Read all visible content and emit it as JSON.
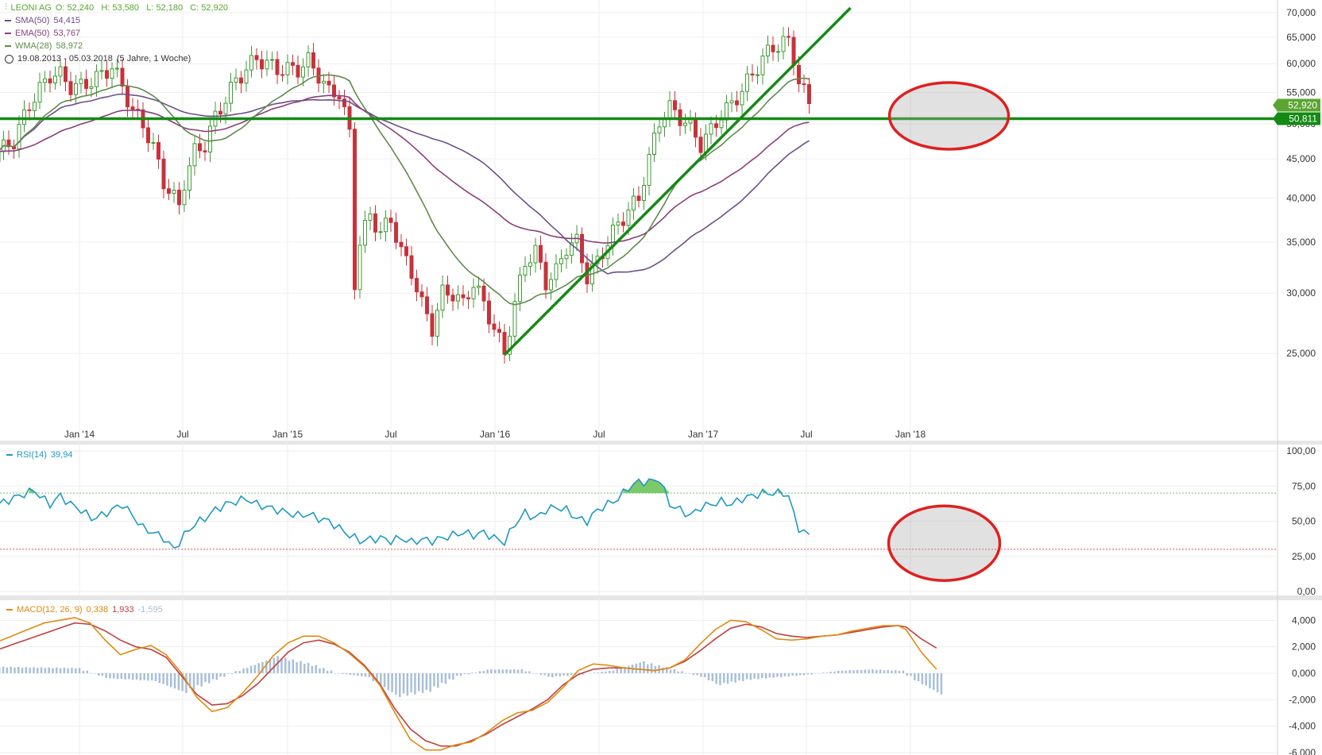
{
  "header": {
    "symbol": "LEONI AG",
    "ohlc": "O: 52,240   H: 53,580   L: 52,180   C: 52,920",
    "range": "19.08.2013 - 05.03.2018",
    "interval": "(5 Jahre, 1 Woche)"
  },
  "indicators": [
    {
      "name": "SMA(50)",
      "value": "54,415",
      "color": "#6c4f8a"
    },
    {
      "name": "EMA(50)",
      "value": "53,767",
      "color": "#8a3f7a"
    },
    {
      "name": "WMA(28)",
      "value": "58,972",
      "color": "#5f8a4a"
    }
  ],
  "price_labels": {
    "last": "52,920",
    "hline": "50,811",
    "last_color": "#5aa532",
    "hline_color": "#138a13"
  },
  "rsi_label": {
    "name": "RSI(14)",
    "value": "39,94",
    "color": "#1e9ac0"
  },
  "macd_label": {
    "name": "MACD(12, 26, 9)",
    "macd": "0,338",
    "signal": "1,933",
    "hist": "-1,595",
    "macd_color": "#e08a10",
    "signal_color": "#c04040",
    "hist_color": "#a9bfd8"
  },
  "chart_data": [
    {
      "type": "candlestick",
      "title": "LEONI AG",
      "scale": "log",
      "x_dates": [
        "Jan '14",
        "Jul",
        "Jan '15",
        "Jul",
        "Jan '16",
        "Jul",
        "Jan '17",
        "Jul",
        "Jan '18"
      ],
      "y_ticks": [
        "25,000",
        "30,000",
        "35,000",
        "40,000",
        "45,000",
        "50,000",
        "55,000",
        "60,000",
        "65,000",
        "70,000"
      ],
      "y_tick_values": [
        25000,
        30000,
        35000,
        40000,
        45000,
        50000,
        55000,
        60000,
        65000,
        70000
      ],
      "ylim": [
        20500,
        71000
      ],
      "close_path": [
        [
          0,
          46
        ],
        [
          3,
          47.5
        ],
        [
          6,
          53
        ],
        [
          8,
          55.5
        ],
        [
          10,
          58
        ],
        [
          12,
          58
        ],
        [
          14,
          56
        ],
        [
          16,
          56
        ],
        [
          18,
          57
        ],
        [
          20,
          58
        ],
        [
          22,
          59.5
        ],
        [
          24,
          56
        ],
        [
          26,
          52
        ],
        [
          28,
          50
        ],
        [
          30,
          46.5
        ],
        [
          32,
          42
        ],
        [
          34,
          40
        ],
        [
          35,
          39
        ],
        [
          36,
          42
        ],
        [
          38,
          46
        ],
        [
          40,
          47
        ],
        [
          42,
          51
        ],
        [
          44,
          54
        ],
        [
          46,
          57
        ],
        [
          48,
          59
        ],
        [
          50,
          61
        ],
        [
          52,
          60
        ],
        [
          54,
          59
        ],
        [
          56,
          59
        ],
        [
          58,
          59
        ],
        [
          60,
          60.5
        ],
        [
          62,
          58
        ],
        [
          64,
          55
        ],
        [
          66,
          55
        ],
        [
          68,
          48.5
        ],
        [
          69,
          31
        ],
        [
          70,
          35
        ],
        [
          72,
          38
        ],
        [
          74,
          36
        ],
        [
          76,
          37.5
        ],
        [
          78,
          34
        ],
        [
          80,
          32
        ],
        [
          82,
          29
        ],
        [
          84,
          27
        ],
        [
          86,
          30
        ],
        [
          88,
          30
        ],
        [
          90,
          29
        ],
        [
          92,
          31
        ],
        [
          94,
          29
        ],
        [
          96,
          27
        ],
        [
          98,
          25
        ],
        [
          100,
          29
        ],
        [
          102,
          33
        ],
        [
          104,
          34
        ],
        [
          106,
          31
        ],
        [
          108,
          32
        ],
        [
          110,
          34.5
        ],
        [
          112,
          35
        ],
        [
          114,
          31.5
        ],
        [
          116,
          33
        ],
        [
          118,
          35
        ],
        [
          120,
          37
        ],
        [
          122,
          38.5
        ],
        [
          124,
          40
        ],
        [
          126,
          45
        ],
        [
          128,
          50.5
        ],
        [
          130,
          52.5
        ],
        [
          132,
          51
        ],
        [
          134,
          49.5
        ],
        [
          136,
          47
        ],
        [
          138,
          49
        ],
        [
          140,
          51.5
        ],
        [
          142,
          53
        ],
        [
          144,
          55.5
        ],
        [
          146,
          58
        ],
        [
          148,
          61
        ],
        [
          150,
          63
        ],
        [
          152,
          64
        ],
        [
          153,
          64
        ],
        [
          154,
          61
        ],
        [
          155,
          57
        ],
        [
          156,
          55
        ],
        [
          157,
          53
        ]
      ],
      "overlays": [
        {
          "name": "SMA(50)",
          "value": 54415,
          "color": "#6c4f8a"
        },
        {
          "name": "EMA(50)",
          "value": 53767,
          "color": "#8a3f7a"
        },
        {
          "name": "WMA(28)",
          "value": 58972,
          "color": "#5f8a4a"
        }
      ],
      "last_close": 52920,
      "horizontal_line": 50811,
      "trendline": {
        "from": [
          98,
          24900
        ],
        "to": [
          165,
          71000
        ],
        "color": "#138a13"
      },
      "ellipses": [
        {
          "center": [
            157,
            51000
          ]
        }
      ]
    },
    {
      "type": "line",
      "title": "RSI(14)",
      "y_ticks": [
        "0,00",
        "25,00",
        "50,00",
        "75,00",
        "100,00"
      ],
      "ylim": [
        0,
        100
      ],
      "levels": [
        30,
        70
      ],
      "last": 39.94,
      "values_path": [
        [
          0,
          62
        ],
        [
          4,
          68
        ],
        [
          7,
          72
        ],
        [
          8,
          68
        ],
        [
          10,
          62
        ],
        [
          12,
          68
        ],
        [
          14,
          62
        ],
        [
          16,
          58
        ],
        [
          18,
          52
        ],
        [
          20,
          54
        ],
        [
          22,
          58
        ],
        [
          24,
          62
        ],
        [
          26,
          54
        ],
        [
          28,
          45
        ],
        [
          30,
          42
        ],
        [
          32,
          38
        ],
        [
          34,
          30
        ],
        [
          36,
          40
        ],
        [
          38,
          48
        ],
        [
          40,
          52
        ],
        [
          42,
          58
        ],
        [
          44,
          62
        ],
        [
          46,
          64
        ],
        [
          48,
          66
        ],
        [
          50,
          62
        ],
        [
          52,
          60
        ],
        [
          54,
          58
        ],
        [
          56,
          56
        ],
        [
          58,
          54
        ],
        [
          60,
          55
        ],
        [
          62,
          52
        ],
        [
          64,
          50
        ],
        [
          66,
          45
        ],
        [
          68,
          40
        ],
        [
          70,
          36
        ],
        [
          72,
          37
        ],
        [
          74,
          38
        ],
        [
          76,
          36
        ],
        [
          78,
          38
        ],
        [
          80,
          35
        ],
        [
          82,
          37
        ],
        [
          84,
          36
        ],
        [
          86,
          38
        ],
        [
          88,
          40
        ],
        [
          90,
          42
        ],
        [
          92,
          40
        ],
        [
          94,
          42
        ],
        [
          96,
          38
        ],
        [
          98,
          35
        ],
        [
          100,
          48
        ],
        [
          102,
          56
        ],
        [
          104,
          52
        ],
        [
          106,
          58
        ],
        [
          108,
          60
        ],
        [
          110,
          58
        ],
        [
          112,
          52
        ],
        [
          114,
          50
        ],
        [
          116,
          58
        ],
        [
          118,
          62
        ],
        [
          120,
          66
        ],
        [
          122,
          74
        ],
        [
          124,
          78
        ],
        [
          126,
          78
        ],
        [
          128,
          80
        ],
        [
          130,
          62
        ],
        [
          132,
          58
        ],
        [
          134,
          54
        ],
        [
          136,
          60
        ],
        [
          138,
          62
        ],
        [
          140,
          64
        ],
        [
          142,
          62
        ],
        [
          144,
          66
        ],
        [
          146,
          68
        ],
        [
          148,
          70
        ],
        [
          150,
          70
        ],
        [
          152,
          70
        ],
        [
          153,
          68
        ],
        [
          154,
          55
        ],
        [
          155,
          45
        ],
        [
          156,
          42
        ],
        [
          157,
          40
        ]
      ],
      "ellipses": [
        {
          "center": [
            157,
            36
          ]
        }
      ]
    },
    {
      "type": "line+bar",
      "title": "MACD(12, 26, 9)",
      "y_ticks": [
        "-6,000",
        "-4,000",
        "-2,000",
        "0,000",
        "2,000",
        "4,000"
      ],
      "ylim": [
        -6000,
        4800
      ],
      "macd_path": [
        [
          0,
          2400
        ],
        [
          6,
          3800
        ],
        [
          10,
          4200
        ],
        [
          12,
          3800
        ],
        [
          14,
          2500
        ],
        [
          16,
          1400
        ],
        [
          18,
          1800
        ],
        [
          20,
          2100
        ],
        [
          22,
          1400
        ],
        [
          24,
          0
        ],
        [
          26,
          -1800
        ],
        [
          28,
          -2900
        ],
        [
          30,
          -2600
        ],
        [
          32,
          -1500
        ],
        [
          34,
          -200
        ],
        [
          36,
          1300
        ],
        [
          38,
          2300
        ],
        [
          40,
          2800
        ],
        [
          42,
          2800
        ],
        [
          44,
          2300
        ],
        [
          46,
          1500
        ],
        [
          48,
          500
        ],
        [
          50,
          -900
        ],
        [
          52,
          -3000
        ],
        [
          54,
          -5000
        ],
        [
          56,
          -5800
        ],
        [
          58,
          -5800
        ],
        [
          60,
          -5400
        ],
        [
          62,
          -5200
        ],
        [
          64,
          -4500
        ],
        [
          66,
          -3600
        ],
        [
          68,
          -3000
        ],
        [
          70,
          -2800
        ],
        [
          72,
          -2200
        ],
        [
          74,
          -1100
        ],
        [
          76,
          200
        ],
        [
          78,
          700
        ],
        [
          80,
          600
        ],
        [
          82,
          400
        ],
        [
          84,
          300
        ],
        [
          86,
          200
        ],
        [
          88,
          400
        ],
        [
          90,
          1000
        ],
        [
          92,
          2200
        ],
        [
          94,
          3300
        ],
        [
          96,
          4000
        ],
        [
          98,
          3900
        ],
        [
          100,
          3300
        ],
        [
          102,
          2600
        ],
        [
          104,
          2500
        ],
        [
          106,
          2600
        ],
        [
          108,
          2800
        ],
        [
          110,
          2900
        ],
        [
          112,
          3200
        ],
        [
          114,
          3400
        ],
        [
          116,
          3600
        ],
        [
          118,
          3600
        ],
        [
          119,
          3300
        ],
        [
          121,
          1600
        ],
        [
          123,
          300
        ]
      ],
      "signal_path": [
        [
          0,
          1800
        ],
        [
          6,
          3000
        ],
        [
          10,
          3800
        ],
        [
          12,
          3700
        ],
        [
          14,
          3200
        ],
        [
          16,
          2500
        ],
        [
          18,
          2000
        ],
        [
          20,
          1800
        ],
        [
          22,
          1200
        ],
        [
          24,
          -200
        ],
        [
          26,
          -1600
        ],
        [
          28,
          -2400
        ],
        [
          30,
          -2300
        ],
        [
          32,
          -1700
        ],
        [
          34,
          -800
        ],
        [
          36,
          400
        ],
        [
          38,
          1600
        ],
        [
          40,
          2300
        ],
        [
          42,
          2500
        ],
        [
          44,
          2200
        ],
        [
          46,
          1600
        ],
        [
          48,
          600
        ],
        [
          50,
          -800
        ],
        [
          52,
          -2700
        ],
        [
          54,
          -4200
        ],
        [
          56,
          -5100
        ],
        [
          58,
          -5500
        ],
        [
          60,
          -5500
        ],
        [
          62,
          -5100
        ],
        [
          64,
          -4600
        ],
        [
          66,
          -3900
        ],
        [
          68,
          -3300
        ],
        [
          70,
          -2700
        ],
        [
          72,
          -2000
        ],
        [
          74,
          -900
        ],
        [
          76,
          -100
        ],
        [
          78,
          300
        ],
        [
          80,
          400
        ],
        [
          82,
          400
        ],
        [
          84,
          300
        ],
        [
          86,
          200
        ],
        [
          88,
          400
        ],
        [
          90,
          900
        ],
        [
          92,
          1700
        ],
        [
          94,
          2600
        ],
        [
          96,
          3400
        ],
        [
          98,
          3700
        ],
        [
          100,
          3500
        ],
        [
          102,
          3000
        ],
        [
          104,
          2800
        ],
        [
          106,
          2700
        ],
        [
          108,
          2800
        ],
        [
          110,
          2900
        ],
        [
          112,
          3100
        ],
        [
          114,
          3300
        ],
        [
          116,
          3500
        ],
        [
          118,
          3600
        ],
        [
          119,
          3500
        ],
        [
          121,
          2600
        ],
        [
          123,
          1900
        ]
      ],
      "histogram_path": [
        [
          0,
          500
        ],
        [
          10,
          400
        ],
        [
          14,
          -400
        ],
        [
          20,
          -600
        ],
        [
          24,
          -1500
        ],
        [
          28,
          -500
        ],
        [
          32,
          400
        ],
        [
          36,
          1300
        ],
        [
          40,
          800
        ],
        [
          44,
          0
        ],
        [
          48,
          -300
        ],
        [
          52,
          -1800
        ],
        [
          56,
          -1400
        ],
        [
          60,
          -200
        ],
        [
          64,
          300
        ],
        [
          68,
          300
        ],
        [
          72,
          -300
        ],
        [
          76,
          -100
        ],
        [
          80,
          200
        ],
        [
          84,
          900
        ],
        [
          88,
          300
        ],
        [
          92,
          -300
        ],
        [
          94,
          -900
        ],
        [
          98,
          -500
        ],
        [
          102,
          -300
        ],
        [
          106,
          -100
        ],
        [
          110,
          200
        ],
        [
          114,
          300
        ],
        [
          118,
          200
        ],
        [
          120,
          -600
        ],
        [
          123,
          -1600
        ]
      ]
    }
  ]
}
